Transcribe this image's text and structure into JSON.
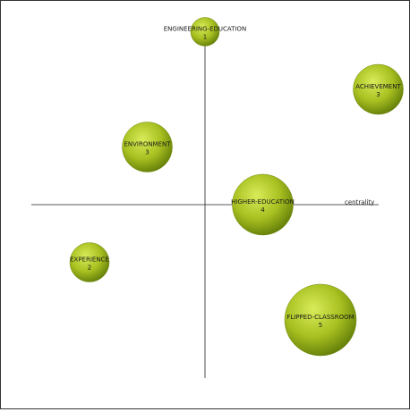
{
  "chart_data": {
    "type": "scatter",
    "subtype": "bubble",
    "x_axis_label": "centrality",
    "y_axis_label": "",
    "xlim": [
      -3,
      3
    ],
    "ylim": [
      -3,
      3
    ],
    "grid": false,
    "bubble_color": "#a8c020",
    "points": [
      {
        "label": "ENGINEERING-EDUCATION",
        "count": "1",
        "x": 0.0,
        "y": 3.0
      },
      {
        "label": "ACHIEVEMENT",
        "count": "3",
        "x": 3.0,
        "y": 2.0
      },
      {
        "label": "ENVIRONMENT",
        "count": "3",
        "x": -1.0,
        "y": 1.0
      },
      {
        "label": "HIGHER-EDUCATION",
        "count": "4",
        "x": 1.0,
        "y": 0.0
      },
      {
        "label": "EXPERIENCE",
        "count": "2",
        "x": -2.0,
        "y": -1.0
      },
      {
        "label": "FLIPPED-CLASSROOM",
        "count": "5",
        "x": 2.0,
        "y": -2.0
      }
    ]
  }
}
